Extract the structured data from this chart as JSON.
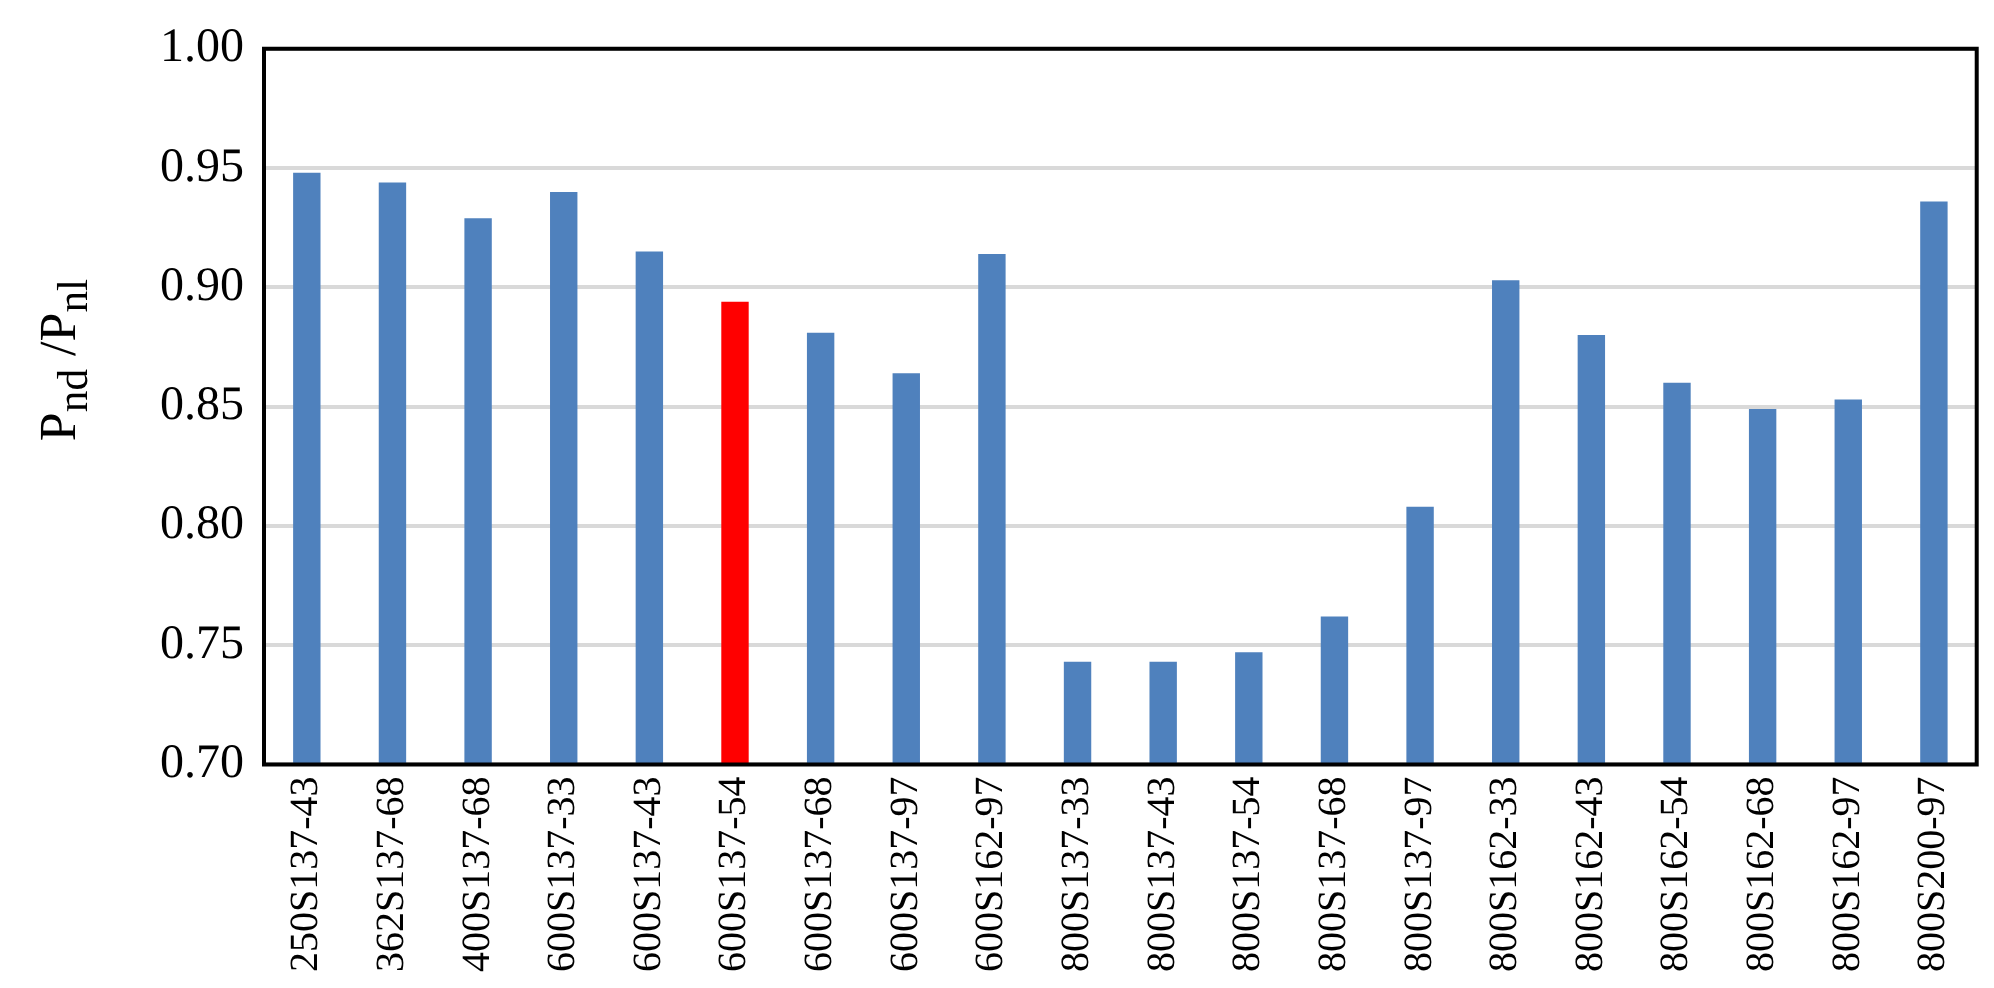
{
  "chart_data": {
    "type": "bar",
    "ylabel": "P$_{nd}$ /P$_{nl}$",
    "categories": [
      "250S137-43",
      "362S137-68",
      "400S137-68",
      "600S137-33",
      "600S137-43",
      "600S137-54",
      "600S137-68",
      "600S137-97",
      "600S162-97",
      "800S137-33",
      "800S137-43",
      "800S137-54",
      "800S137-68",
      "800S137-97",
      "800S162-33",
      "800S162-43",
      "800S162-54",
      "800S162-68",
      "800S162-97",
      "800S200-97"
    ],
    "values": [
      0.948,
      0.944,
      0.929,
      0.94,
      0.915,
      0.894,
      0.881,
      0.864,
      0.914,
      0.743,
      0.743,
      0.747,
      0.762,
      0.808,
      0.903,
      0.88,
      0.86,
      0.849,
      0.853,
      0.936
    ],
    "colors": [
      "#4f81bd",
      "#4f81bd",
      "#4f81bd",
      "#4f81bd",
      "#4f81bd",
      "#ff0000",
      "#4f81bd",
      "#4f81bd",
      "#4f81bd",
      "#4f81bd",
      "#4f81bd",
      "#4f81bd",
      "#4f81bd",
      "#4f81bd",
      "#4f81bd",
      "#4f81bd",
      "#4f81bd",
      "#4f81bd",
      "#4f81bd",
      "#4f81bd"
    ],
    "ylim": [
      0.7,
      1.0
    ],
    "yticks": [
      {
        "value": 0.7,
        "label": "0.70"
      },
      {
        "value": 0.75,
        "label": "0.75"
      },
      {
        "value": 0.8,
        "label": "0.80"
      },
      {
        "value": 0.85,
        "label": "0.85"
      },
      {
        "value": 0.9,
        "label": "0.90"
      },
      {
        "value": 0.95,
        "label": "0.95"
      },
      {
        "value": 1.0,
        "label": "1.00"
      }
    ],
    "grid": "y"
  }
}
